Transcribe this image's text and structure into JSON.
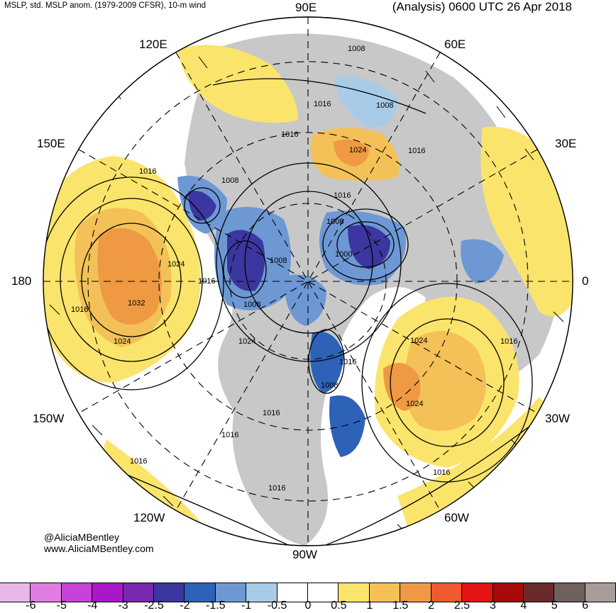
{
  "header": {
    "left": "MSLP, std. MSLP anom. (1979-2009 CFSR), 10-m wind",
    "right": "(Analysis) 0600 UTC 26 Apr 2018"
  },
  "longitudes": {
    "n": "90E",
    "ne": "60E",
    "nnw": "120E",
    "wnw": "150E",
    "ene": "30E",
    "w": "180",
    "e": "0",
    "wsw": "150W",
    "ssw": "120W",
    "s": "90W",
    "sse": "60W",
    "ese": "30W"
  },
  "isobars": [
    "1008",
    "1016",
    "1008",
    "1016",
    "1016",
    "1024",
    "1016",
    "1008",
    "1016",
    "1008",
    "1024",
    "1016",
    "1008",
    "1000",
    "1008",
    "1032",
    "1016",
    "1024",
    "1024",
    "1024",
    "1016",
    "1016",
    "1008",
    "1016",
    "1016",
    "1016",
    "1024",
    "1016",
    "1016"
  ],
  "credit": {
    "line1": "@AliciaMBentley",
    "line2": "www.AliciaMBentley.com"
  },
  "colorbar": {
    "ticks": [
      "-6",
      "-5",
      "-4",
      "-3",
      "-2.5",
      "-2",
      "-1.5",
      "-1",
      "-0.5",
      "0",
      "0.5",
      "1",
      "1.5",
      "2",
      "2.5",
      "3",
      "4",
      "5",
      "6"
    ],
    "colors": [
      "#e8b8e8",
      "#e07de0",
      "#c842d8",
      "#a818c8",
      "#7a28b0",
      "#3c36a0",
      "#2e62b8",
      "#6d98d4",
      "#a8cce8",
      "#ffffff",
      "#ffffff",
      "#fbe46c",
      "#f3c158",
      "#ef9a42",
      "#ef5a2e",
      "#e51414",
      "#a80a0a",
      "#6b2a2a",
      "#70605e",
      "#a89c9a"
    ]
  }
}
